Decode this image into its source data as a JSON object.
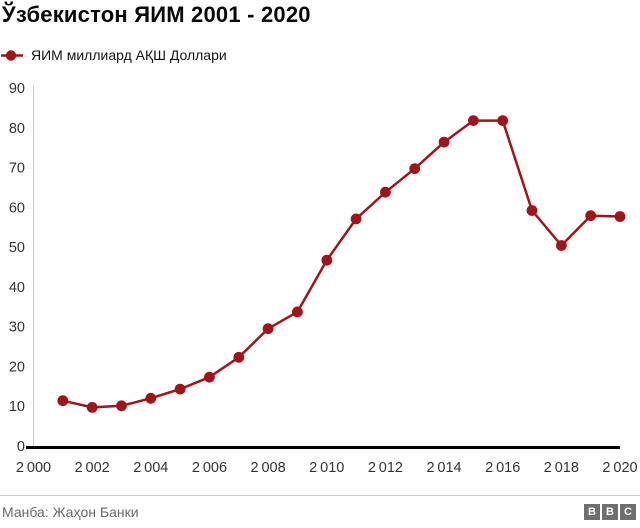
{
  "header": {
    "title": "Ўзбекистон ЯИМ 2001 - 2020"
  },
  "legend": {
    "label": "ЯИМ миллиард АҚШ Доллари"
  },
  "footer": {
    "source": "Манба: Жаҳон Банки",
    "logo_letters": [
      "B",
      "B",
      "C"
    ]
  },
  "colors": {
    "line": "#a11419",
    "tick_text": "#333333",
    "axis_line": "#cccccc",
    "x_axis_line": "#000000",
    "footer_text": "#696969",
    "logo_bg": "#6e6e73"
  },
  "chart_data": {
    "type": "line",
    "title": "Ўзбекистон ЯИМ 2001 - 2020",
    "x": [
      2001,
      2002,
      2003,
      2004,
      2005,
      2006,
      2007,
      2008,
      2009,
      2010,
      2011,
      2012,
      2013,
      2014,
      2015,
      2016,
      2017,
      2018,
      2019,
      2020
    ],
    "series": [
      {
        "name": "ЯИМ миллиард АҚШ Доллари",
        "values": [
          11.4,
          9.7,
          10.1,
          12.0,
          14.3,
          17.3,
          22.3,
          29.5,
          33.7,
          46.7,
          57.1,
          63.8,
          69.7,
          76.4,
          81.8,
          81.8,
          59.2,
          50.4,
          57.9,
          57.7
        ]
      }
    ],
    "xlabel": "",
    "ylabel": "",
    "xlim": [
      2000,
      2020
    ],
    "ylim": [
      0,
      90
    ],
    "yticks": [
      0,
      10,
      20,
      30,
      40,
      50,
      60,
      70,
      80,
      90
    ],
    "xticks": [
      2000,
      2002,
      2004,
      2006,
      2008,
      2010,
      2012,
      2014,
      2016,
      2018,
      2020
    ],
    "xtick_labels": [
      "2 000",
      "2 002",
      "2 004",
      "2 006",
      "2 008",
      "2 010",
      "2 012",
      "2 014",
      "2 016",
      "2 018",
      "2 020"
    ],
    "grid": false,
    "legend_position": "top-left",
    "marker": "circle"
  }
}
